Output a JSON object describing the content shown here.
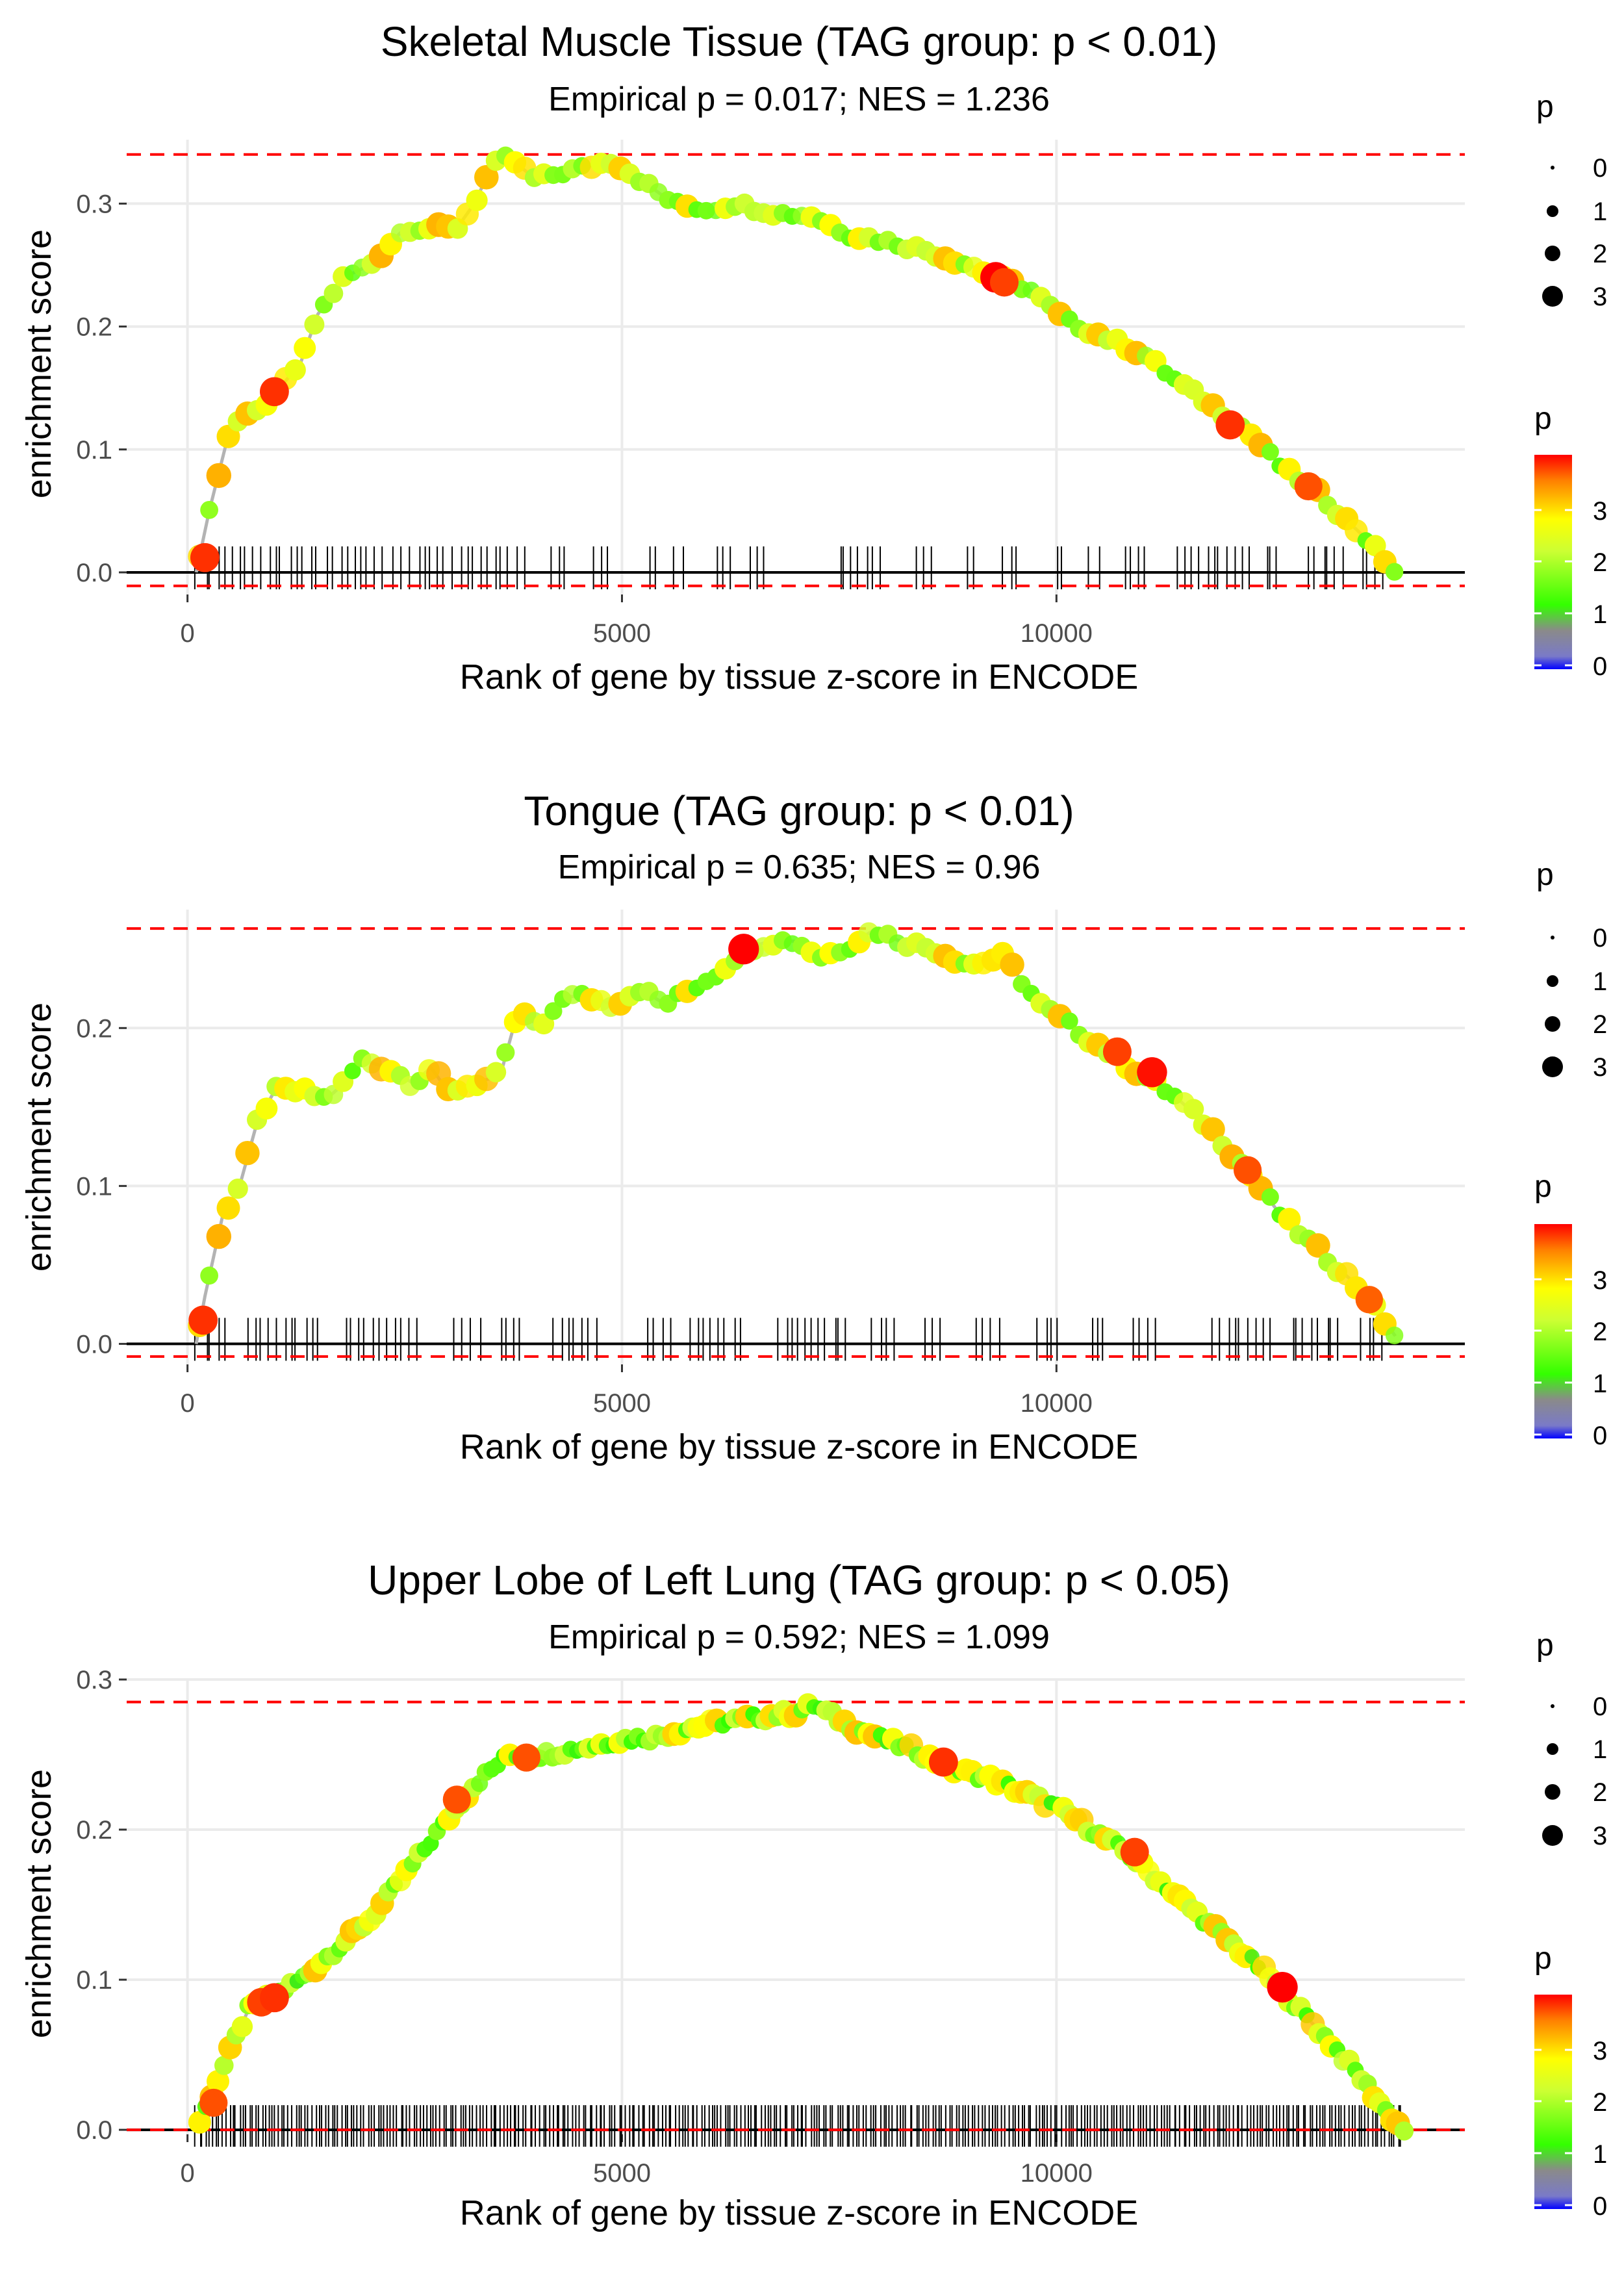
{
  "chart_data": [
    {
      "type": "line",
      "title": "Skeletal Muscle Tissue (TAG group: p < 0.01)",
      "subtitle": "Empirical p = 0.017; NES = 1.236",
      "xlabel": "Rank of gene by tissue z-score in ENCODE",
      "ylabel": "enrichment score",
      "xlim": [
        -700,
        14700
      ],
      "ylim": [
        -0.018,
        0.352
      ],
      "x_ticks": [
        0,
        5000,
        10000
      ],
      "y_ticks": [
        0.0,
        0.1,
        0.2,
        0.3
      ],
      "y_tick_labels": [
        "0.0",
        "0.1",
        "0.2",
        "0.3"
      ],
      "hlines": {
        "solid": 0,
        "dashed_max": 0.34,
        "dashed_min": -0.011
      },
      "gene_spacing": 80,
      "gene_step": 110,
      "curve": [
        {
          "x": 100,
          "y": 0.0
        },
        {
          "x": 250,
          "y": 0.05
        },
        {
          "x": 500,
          "y": 0.12
        },
        {
          "x": 800,
          "y": 0.13
        },
        {
          "x": 1000,
          "y": 0.145
        },
        {
          "x": 1300,
          "y": 0.17
        },
        {
          "x": 1500,
          "y": 0.21
        },
        {
          "x": 1800,
          "y": 0.24
        },
        {
          "x": 2100,
          "y": 0.25
        },
        {
          "x": 2300,
          "y": 0.265
        },
        {
          "x": 2500,
          "y": 0.28
        },
        {
          "x": 2800,
          "y": 0.28
        },
        {
          "x": 3100,
          "y": 0.28
        },
        {
          "x": 3300,
          "y": 0.3
        },
        {
          "x": 3500,
          "y": 0.33
        },
        {
          "x": 3700,
          "y": 0.338
        },
        {
          "x": 4000,
          "y": 0.32
        },
        {
          "x": 4300,
          "y": 0.325
        },
        {
          "x": 4600,
          "y": 0.33
        },
        {
          "x": 4900,
          "y": 0.335
        },
        {
          "x": 5200,
          "y": 0.32
        },
        {
          "x": 5600,
          "y": 0.3
        },
        {
          "x": 6000,
          "y": 0.295
        },
        {
          "x": 6300,
          "y": 0.3
        },
        {
          "x": 6800,
          "y": 0.292
        },
        {
          "x": 7200,
          "y": 0.29
        },
        {
          "x": 7600,
          "y": 0.275
        },
        {
          "x": 8000,
          "y": 0.27
        },
        {
          "x": 8500,
          "y": 0.262
        },
        {
          "x": 9000,
          "y": 0.25
        },
        {
          "x": 9300,
          "y": 0.24
        },
        {
          "x": 9700,
          "y": 0.23
        },
        {
          "x": 10100,
          "y": 0.205
        },
        {
          "x": 10600,
          "y": 0.19
        },
        {
          "x": 11000,
          "y": 0.178
        },
        {
          "x": 11300,
          "y": 0.16
        },
        {
          "x": 11800,
          "y": 0.135
        },
        {
          "x": 12200,
          "y": 0.115
        },
        {
          "x": 12600,
          "y": 0.085
        },
        {
          "x": 13000,
          "y": 0.065
        },
        {
          "x": 13300,
          "y": 0.045
        },
        {
          "x": 13600,
          "y": 0.025
        },
        {
          "x": 13900,
          "y": 0.0
        }
      ],
      "gene_clusters": [
        [
          120,
          1500
        ],
        [
          1600,
          2300
        ],
        [
          2400,
          3600
        ],
        [
          3700,
          3900
        ],
        [
          4200,
          4400
        ],
        [
          4700,
          4900
        ],
        [
          5300,
          5400
        ],
        [
          5600,
          5700
        ],
        [
          6100,
          6300
        ],
        [
          6500,
          6700
        ],
        [
          7500,
          8000
        ],
        [
          8400,
          8600
        ],
        [
          9000,
          9100
        ],
        [
          9400,
          9600
        ],
        [
          10000,
          10100
        ],
        [
          10400,
          10500
        ],
        [
          10800,
          11100
        ],
        [
          11400,
          12200
        ],
        [
          12400,
          12600
        ],
        [
          12900,
          13300
        ],
        [
          13500,
          13800
        ]
      ],
      "big_points": [
        {
          "x": 200,
          "y": 0.012,
          "p": 3.6
        },
        {
          "x": 1000,
          "y": 0.147,
          "p": 3.6
        },
        {
          "x": 9300,
          "y": 0.24,
          "p": 3.9
        },
        {
          "x": 9400,
          "y": 0.236,
          "p": 3.5
        },
        {
          "x": 12000,
          "y": 0.12,
          "p": 3.6
        },
        {
          "x": 12900,
          "y": 0.07,
          "p": 3.4
        }
      ],
      "legend": {
        "size_title": "p",
        "size_labels": [
          "0",
          "1",
          "2",
          "3"
        ],
        "color_title": "p",
        "color_labels": [
          "3",
          "2",
          "1",
          "0"
        ]
      }
    },
    {
      "type": "line",
      "title": "Tongue (TAG group: p < 0.01)",
      "subtitle": "Empirical p = 0.635; NES = 0.96",
      "xlabel": "Rank of gene by tissue z-score in ENCODE",
      "ylabel": "enrichment score",
      "xlim": [
        -700,
        14700
      ],
      "ylim": [
        -0.013,
        0.275
      ],
      "x_ticks": [
        0,
        5000,
        10000
      ],
      "y_ticks": [
        0.0,
        0.1,
        0.2
      ],
      "y_tick_labels": [
        "0.0",
        "0.1",
        "0.2"
      ],
      "hlines": {
        "solid": 0,
        "dashed_max": 0.263,
        "dashed_min": -0.008
      },
      "gene_spacing": 80,
      "gene_step": 110,
      "curve": [
        {
          "x": 100,
          "y": 0.0
        },
        {
          "x": 200,
          "y": 0.03
        },
        {
          "x": 400,
          "y": 0.08
        },
        {
          "x": 600,
          "y": 0.1
        },
        {
          "x": 800,
          "y": 0.14
        },
        {
          "x": 1000,
          "y": 0.16
        },
        {
          "x": 1300,
          "y": 0.16
        },
        {
          "x": 1600,
          "y": 0.155
        },
        {
          "x": 1800,
          "y": 0.165
        },
        {
          "x": 2000,
          "y": 0.18
        },
        {
          "x": 2300,
          "y": 0.175
        },
        {
          "x": 2600,
          "y": 0.165
        },
        {
          "x": 2800,
          "y": 0.175
        },
        {
          "x": 3000,
          "y": 0.16
        },
        {
          "x": 3300,
          "y": 0.165
        },
        {
          "x": 3600,
          "y": 0.17
        },
        {
          "x": 3800,
          "y": 0.21
        },
        {
          "x": 4100,
          "y": 0.2
        },
        {
          "x": 4300,
          "y": 0.22
        },
        {
          "x": 4600,
          "y": 0.22
        },
        {
          "x": 4900,
          "y": 0.215
        },
        {
          "x": 5200,
          "y": 0.225
        },
        {
          "x": 5500,
          "y": 0.215
        },
        {
          "x": 5800,
          "y": 0.225
        },
        {
          "x": 6100,
          "y": 0.235
        },
        {
          "x": 6400,
          "y": 0.25
        },
        {
          "x": 6700,
          "y": 0.255
        },
        {
          "x": 7000,
          "y": 0.255
        },
        {
          "x": 7300,
          "y": 0.245
        },
        {
          "x": 7600,
          "y": 0.252
        },
        {
          "x": 7900,
          "y": 0.262
        },
        {
          "x": 8200,
          "y": 0.255
        },
        {
          "x": 8600,
          "y": 0.25
        },
        {
          "x": 9000,
          "y": 0.24
        },
        {
          "x": 9400,
          "y": 0.245
        },
        {
          "x": 9800,
          "y": 0.215
        },
        {
          "x": 10200,
          "y": 0.2
        },
        {
          "x": 10600,
          "y": 0.185
        },
        {
          "x": 11000,
          "y": 0.17
        },
        {
          "x": 11400,
          "y": 0.155
        },
        {
          "x": 11800,
          "y": 0.135
        },
        {
          "x": 12200,
          "y": 0.11
        },
        {
          "x": 12600,
          "y": 0.08
        },
        {
          "x": 13000,
          "y": 0.06
        },
        {
          "x": 13400,
          "y": 0.04
        },
        {
          "x": 13700,
          "y": 0.02
        },
        {
          "x": 13900,
          "y": 0.005
        }
      ],
      "gene_clusters": [
        [
          120,
          500
        ],
        [
          700,
          1500
        ],
        [
          1800,
          2300
        ],
        [
          2400,
          2700
        ],
        [
          3100,
          3400
        ],
        [
          3600,
          3900
        ],
        [
          4200,
          4700
        ],
        [
          5300,
          5600
        ],
        [
          5800,
          6400
        ],
        [
          6800,
          7600
        ],
        [
          7900,
          8200
        ],
        [
          8500,
          8700
        ],
        [
          9100,
          9400
        ],
        [
          9800,
          10100
        ],
        [
          10400,
          10600
        ],
        [
          10900,
          11200
        ],
        [
          11800,
          12500
        ],
        [
          12700,
          13300
        ],
        [
          13500,
          13800
        ]
      ],
      "big_points": [
        {
          "x": 180,
          "y": 0.015,
          "p": 3.6
        },
        {
          "x": 6400,
          "y": 0.25,
          "p": 3.9
        },
        {
          "x": 10700,
          "y": 0.185,
          "p": 3.5
        },
        {
          "x": 11100,
          "y": 0.172,
          "p": 3.8
        },
        {
          "x": 12200,
          "y": 0.11,
          "p": 3.4
        },
        {
          "x": 13600,
          "y": 0.028,
          "p": 3.3
        }
      ],
      "legend": {
        "size_title": "p",
        "size_labels": [
          "0",
          "1",
          "2",
          "3"
        ],
        "color_title": "p",
        "color_labels": [
          "3",
          "2",
          "1",
          "0"
        ]
      }
    },
    {
      "type": "line",
      "title": "Upper Lobe of Left Lung (TAG group: p < 0.05)",
      "subtitle": "Empirical p = 0.592; NES = 1.099",
      "xlabel": "Rank of gene by tissue z-score in ENCODE",
      "ylabel": "enrichment score",
      "xlim": [
        -700,
        14700
      ],
      "ylim": [
        -0.003,
        0.3
      ],
      "x_ticks": [
        0,
        5000,
        10000
      ],
      "y_ticks": [
        0.0,
        0.1,
        0.2,
        0.3
      ],
      "y_tick_labels": [
        "0.0",
        "0.1",
        "0.2",
        "0.3"
      ],
      "hlines": {
        "solid": 0,
        "dashed_max": 0.285,
        "dashed_min": 0.0
      },
      "gene_spacing": 38,
      "gene_step": 70,
      "curve": [
        {
          "x": 100,
          "y": 0.0
        },
        {
          "x": 400,
          "y": 0.04
        },
        {
          "x": 700,
          "y": 0.08
        },
        {
          "x": 1000,
          "y": 0.09
        },
        {
          "x": 1300,
          "y": 0.1
        },
        {
          "x": 1700,
          "y": 0.12
        },
        {
          "x": 2100,
          "y": 0.14
        },
        {
          "x": 2500,
          "y": 0.17
        },
        {
          "x": 2900,
          "y": 0.2
        },
        {
          "x": 3300,
          "y": 0.23
        },
        {
          "x": 3700,
          "y": 0.25
        },
        {
          "x": 4100,
          "y": 0.25
        },
        {
          "x": 4600,
          "y": 0.255
        },
        {
          "x": 5000,
          "y": 0.26
        },
        {
          "x": 5400,
          "y": 0.262
        },
        {
          "x": 5800,
          "y": 0.268
        },
        {
          "x": 6200,
          "y": 0.272
        },
        {
          "x": 6600,
          "y": 0.275
        },
        {
          "x": 7000,
          "y": 0.278
        },
        {
          "x": 7200,
          "y": 0.283
        },
        {
          "x": 7600,
          "y": 0.27
        },
        {
          "x": 8000,
          "y": 0.26
        },
        {
          "x": 8400,
          "y": 0.252
        },
        {
          "x": 8800,
          "y": 0.24
        },
        {
          "x": 9200,
          "y": 0.235
        },
        {
          "x": 9600,
          "y": 0.225
        },
        {
          "x": 10000,
          "y": 0.215
        },
        {
          "x": 10400,
          "y": 0.2
        },
        {
          "x": 10800,
          "y": 0.185
        },
        {
          "x": 11200,
          "y": 0.165
        },
        {
          "x": 11600,
          "y": 0.145
        },
        {
          "x": 12000,
          "y": 0.125
        },
        {
          "x": 12400,
          "y": 0.105
        },
        {
          "x": 12800,
          "y": 0.08
        },
        {
          "x": 13200,
          "y": 0.055
        },
        {
          "x": 13500,
          "y": 0.035
        },
        {
          "x": 13800,
          "y": 0.012
        },
        {
          "x": 14000,
          "y": 0.0
        }
      ],
      "gene_clusters": [
        [
          100,
          14000
        ]
      ],
      "big_points": [
        {
          "x": 300,
          "y": 0.018,
          "p": 3.4
        },
        {
          "x": 850,
          "y": 0.085,
          "p": 3.5
        },
        {
          "x": 1000,
          "y": 0.088,
          "p": 3.6
        },
        {
          "x": 3100,
          "y": 0.22,
          "p": 3.4
        },
        {
          "x": 3900,
          "y": 0.248,
          "p": 3.4
        },
        {
          "x": 8700,
          "y": 0.245,
          "p": 3.6
        },
        {
          "x": 10900,
          "y": 0.185,
          "p": 3.5
        },
        {
          "x": 12600,
          "y": 0.095,
          "p": 3.9
        }
      ],
      "legend": {
        "size_title": "p",
        "size_labels": [
          "0",
          "1",
          "2",
          "3"
        ],
        "color_title": "p",
        "color_labels": [
          "3",
          "2",
          "1",
          "0"
        ]
      }
    }
  ]
}
